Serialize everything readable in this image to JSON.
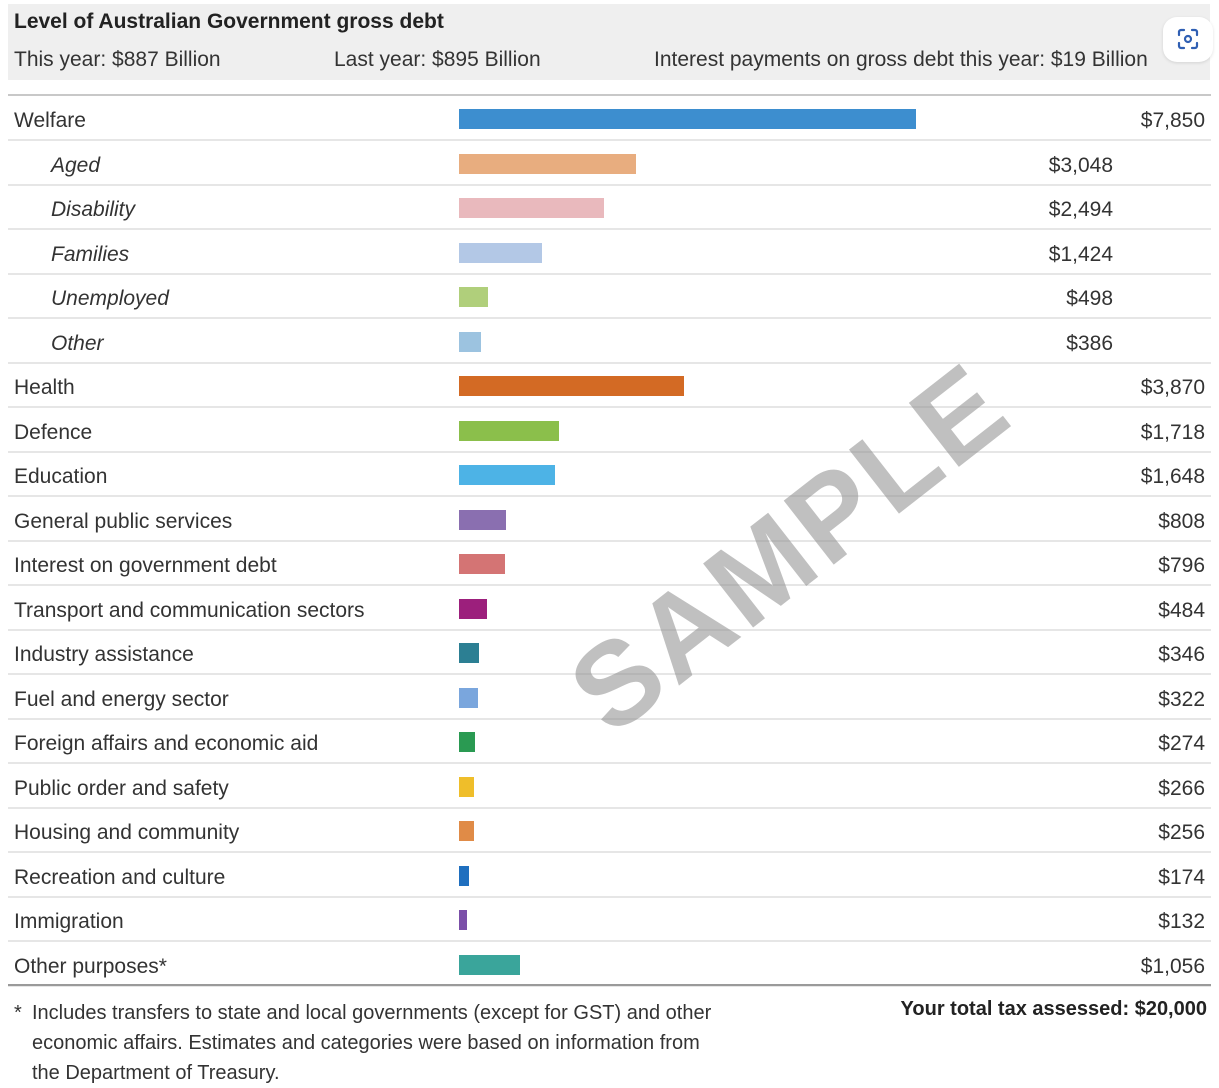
{
  "header": {
    "title": "Level of Australian Government gross debt",
    "this_year": "This year: $887 Billion",
    "last_year": "Last year: $895 Billion",
    "interest": "Interest payments on gross debt this year: $19 Billion",
    "scan_icon": "scan-icon"
  },
  "chart_data": {
    "type": "bar",
    "orientation": "horizontal",
    "value_prefix": "$",
    "xlim": [
      0,
      7850
    ],
    "rows": [
      {
        "label": "Welfare",
        "value": 7850,
        "value_label": "$7,850",
        "color": "#3d8ecf",
        "sub": false
      },
      {
        "label": "Aged",
        "value": 3048,
        "value_label": "$3,048",
        "color": "#e8ad7f",
        "sub": true
      },
      {
        "label": "Disability",
        "value": 2494,
        "value_label": "$2,494",
        "color": "#e9b9bd",
        "sub": true
      },
      {
        "label": "Families",
        "value": 1424,
        "value_label": "$1,424",
        "color": "#b3c8e6",
        "sub": true
      },
      {
        "label": "Unemployed",
        "value": 498,
        "value_label": "$498",
        "color": "#b0cf7b",
        "sub": true
      },
      {
        "label": "Other",
        "value": 386,
        "value_label": "$386",
        "color": "#9cc3e0",
        "sub": true
      },
      {
        "label": "Health",
        "value": 3870,
        "value_label": "$3,870",
        "color": "#d36a24",
        "sub": false
      },
      {
        "label": "Defence",
        "value": 1718,
        "value_label": "$1,718",
        "color": "#8bbf4b",
        "sub": false
      },
      {
        "label": "Education",
        "value": 1648,
        "value_label": "$1,648",
        "color": "#4db3e6",
        "sub": false
      },
      {
        "label": "General public services",
        "value": 808,
        "value_label": "$808",
        "color": "#8a6fb0",
        "sub": false
      },
      {
        "label": "Interest on government debt",
        "value": 796,
        "value_label": "$796",
        "color": "#d47474",
        "sub": false
      },
      {
        "label": "Transport and communication sectors",
        "value": 484,
        "value_label": "$484",
        "color": "#9c1f7c",
        "sub": false
      },
      {
        "label": "Industry assistance",
        "value": 346,
        "value_label": "$346",
        "color": "#2c7f93",
        "sub": false
      },
      {
        "label": "Fuel and energy sector",
        "value": 322,
        "value_label": "$322",
        "color": "#7aa6dd",
        "sub": false
      },
      {
        "label": "Foreign affairs and economic aid",
        "value": 274,
        "value_label": "$274",
        "color": "#2a9a52",
        "sub": false
      },
      {
        "label": "Public order and safety",
        "value": 266,
        "value_label": "$266",
        "color": "#efbe2a",
        "sub": false
      },
      {
        "label": "Housing and community",
        "value": 256,
        "value_label": "$256",
        "color": "#e08b47",
        "sub": false
      },
      {
        "label": "Recreation and culture",
        "value": 174,
        "value_label": "$174",
        "color": "#1f6fbf",
        "sub": false
      },
      {
        "label": "Immigration",
        "value": 132,
        "value_label": "$132",
        "color": "#7b4fa8",
        "sub": false
      },
      {
        "label": "Other purposes*",
        "value": 1056,
        "value_label": "$1,056",
        "color": "#3aa59b",
        "sub": false
      }
    ]
  },
  "footnote": {
    "star": "*",
    "text": "Includes transfers to state and local governments (except for GST) and other economic affairs. Estimates and categories were based on information from the Department of Treasury."
  },
  "total": "Your total tax assessed: $20,000",
  "watermark": "SAMPLE"
}
